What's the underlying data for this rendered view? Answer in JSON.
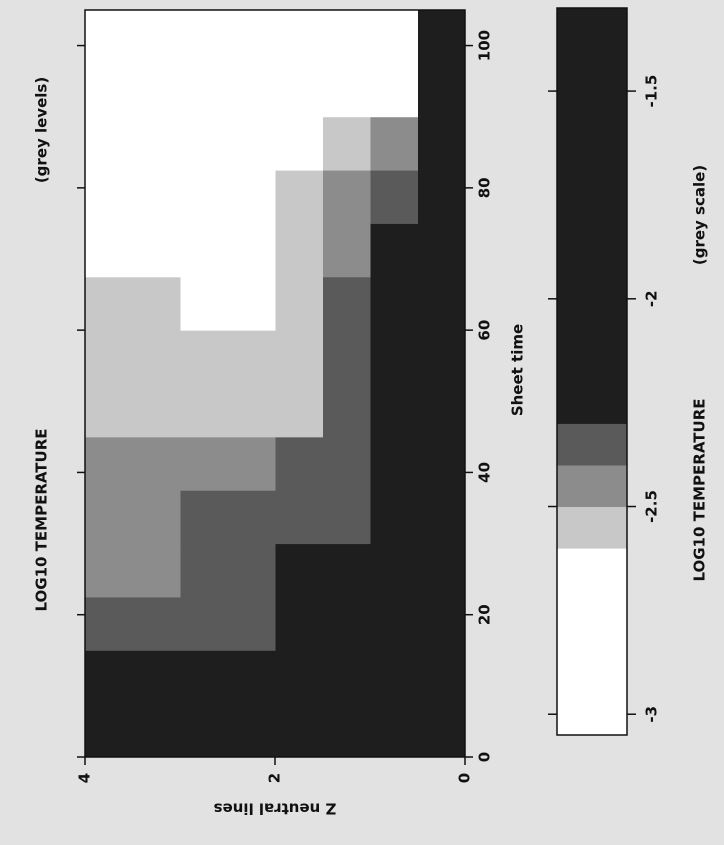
{
  "chart_data": {
    "type": "heatmap",
    "title": "LOG10 TEMPERATURE",
    "subtitle": "(grey levels)",
    "x_label": "Sheet time",
    "y_label": "Z neutral lines",
    "x_edges": [
      0,
      7.5,
      15,
      22.5,
      30,
      37.5,
      45,
      52.5,
      60,
      67.5,
      75,
      82.5,
      90,
      97.5,
      105
    ],
    "y_edges": [
      0,
      0.5,
      1,
      1.5,
      2,
      2.5,
      3,
      3.5,
      4
    ],
    "z": [
      [
        -1.5,
        -1.5,
        -1.5,
        -1.5,
        -1.5,
        -1.5,
        -1.5,
        -1.5,
        -1.5,
        -1.5,
        -1.5,
        -1.5,
        -1.5,
        -1.5
      ],
      [
        -1.5,
        -1.5,
        -2.2,
        -2.2,
        -2.3,
        -2.3,
        -2.2,
        -1.8,
        -1.8,
        -2.0,
        -2.4,
        -2.5,
        -2.8,
        -3.0
      ],
      [
        -1.5,
        -1.6,
        -2.25,
        -2.25,
        -2.35,
        -2.35,
        -2.35,
        -2.35,
        -2.4,
        -2.45,
        -2.5,
        -2.55,
        -2.8,
        -3.0
      ],
      [
        -1.5,
        -1.7,
        -2.25,
        -2.3,
        -2.35,
        -2.35,
        -2.55,
        -2.55,
        -2.55,
        -2.55,
        -2.6,
        -2.7,
        -2.9,
        -3.0
      ],
      [
        -1.5,
        -2.2,
        -2.35,
        -2.35,
        -2.35,
        -2.45,
        -2.55,
        -2.55,
        -2.7,
        -2.8,
        -2.9,
        -3.0,
        -3.0,
        -3.0
      ],
      [
        -1.5,
        -2.2,
        -2.35,
        -2.4,
        -2.4,
        -2.45,
        -2.55,
        -2.55,
        -2.8,
        -2.9,
        -3.0,
        -3.0,
        -3.0,
        -3.0
      ],
      [
        -1.5,
        -2.2,
        -2.35,
        -2.45,
        -2.45,
        -2.45,
        -2.55,
        -2.55,
        -2.55,
        -2.8,
        -3.0,
        -3.0,
        -3.0,
        -3.0
      ],
      [
        -1.5,
        -2.2,
        -2.35,
        -2.45,
        -2.45,
        -2.45,
        -2.55,
        -2.55,
        -2.55,
        -2.8,
        -3.0,
        -3.0,
        -3.0,
        -3.0
      ]
    ],
    "xlim": [
      0,
      105
    ],
    "ylim": [
      0,
      4
    ],
    "xticks": [
      0,
      20,
      40,
      60,
      80,
      100
    ],
    "yticks": [
      0,
      2,
      4
    ],
    "colorbar": {
      "title": "LOG10 TEMPERATURE",
      "subtitle": "(grey scale)",
      "lim": [
        -3.05,
        -1.3
      ],
      "ticks": [
        -3,
        -2.5,
        -2,
        -1.5
      ],
      "boundaries": [
        -3.05,
        -2.6,
        -2.5,
        -2.4,
        -2.3,
        -1.3
      ],
      "colors": [
        "#ffffff",
        "#c8c8c8",
        "#8c8c8c",
        "#5a5a5a",
        "#1e1e1e"
      ]
    }
  }
}
